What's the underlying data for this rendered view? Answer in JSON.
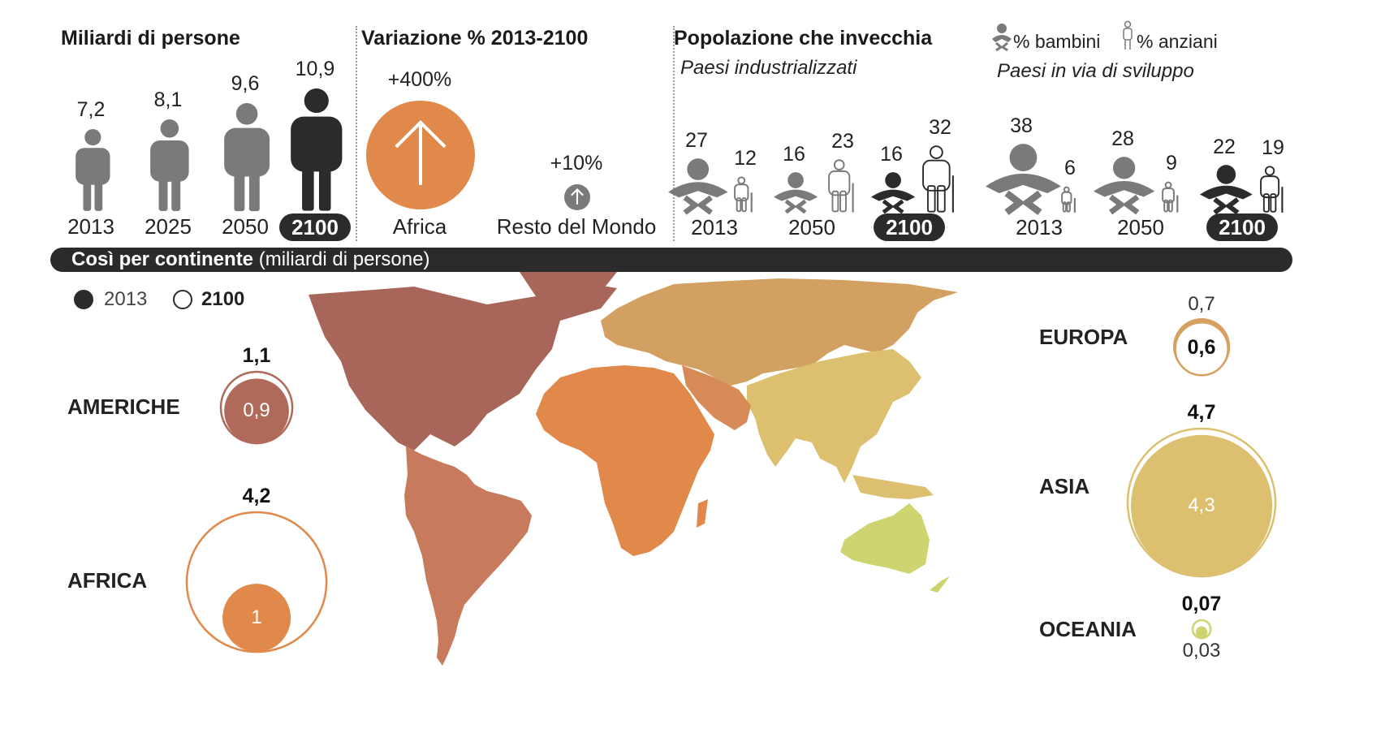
{
  "header": {
    "col1_title": "Miliardi di persone",
    "col2_title": "Variazione % 2013-2100",
    "col3_title": "Popolazione che invecchia",
    "legend_children": "% bambini",
    "legend_elderly": "% anziani",
    "sub_industrial": "Paesi industrializzati",
    "sub_developing": "Paesi in via di sviluppo"
  },
  "colors": {
    "dark": "#2b2b2b",
    "grey": "#7a7a7a",
    "orange": "#e0894a",
    "americas": "#b06a5a",
    "europe": "#d8a060",
    "asia": "#dcc070",
    "oceania": "#cdd470"
  },
  "icons": {
    "person": "person-icon",
    "baby": "baby-icon",
    "elder": "elderly-person-icon",
    "arrow": "arrow-up-icon"
  },
  "chart_data": [
    {
      "type": "bar",
      "title": "Miliardi di persone",
      "categories": [
        "2013",
        "2025",
        "2050",
        "2100"
      ],
      "values": [
        7.2,
        8.1,
        9.6,
        10.9
      ],
      "value_labels": [
        "7,2",
        "8,1",
        "9,6",
        "10,9"
      ],
      "highlight": "2100"
    },
    {
      "type": "bar",
      "title": "Variazione % 2013-2100",
      "categories": [
        "Africa",
        "Resto del Mondo"
      ],
      "values": [
        400,
        10
      ],
      "value_labels": [
        "+400%",
        "+10%"
      ]
    },
    {
      "type": "bar",
      "title": "Popolazione che invecchia",
      "groups": [
        {
          "name": "Paesi industrializzati",
          "categories": [
            "2013",
            "2050",
            "2100"
          ],
          "series": [
            {
              "name": "% bambini",
              "values": [
                27,
                16,
                16
              ]
            },
            {
              "name": "% anziani",
              "values": [
                12,
                23,
                32
              ]
            }
          ]
        },
        {
          "name": "Paesi in via di sviluppo",
          "categories": [
            "2013",
            "2050",
            "2100"
          ],
          "series": [
            {
              "name": "% bambini",
              "values": [
                38,
                28,
                22
              ]
            },
            {
              "name": "% anziani",
              "values": [
                6,
                9,
                19
              ]
            }
          ]
        }
      ]
    },
    {
      "type": "scatter",
      "title": "Così per continente",
      "subtitle": "(miliardi di persone)",
      "legend": [
        {
          "name": "2013"
        },
        {
          "name": "2100"
        }
      ],
      "categories": [
        "AMERICHE",
        "AFRICA",
        "EUROPA",
        "ASIA",
        "OCEANIA"
      ],
      "series": [
        {
          "name": "2013",
          "values": [
            0.9,
            1,
            0.7,
            4.3,
            0.03
          ],
          "labels": [
            "0,9",
            "1",
            "0,7",
            "4,3",
            "0,03"
          ]
        },
        {
          "name": "2100",
          "values": [
            1.1,
            4.2,
            0.6,
            4.7,
            0.07
          ],
          "labels": [
            "1,1",
            "4,2",
            "0,6",
            "4,7",
            "0,07"
          ]
        }
      ]
    }
  ]
}
